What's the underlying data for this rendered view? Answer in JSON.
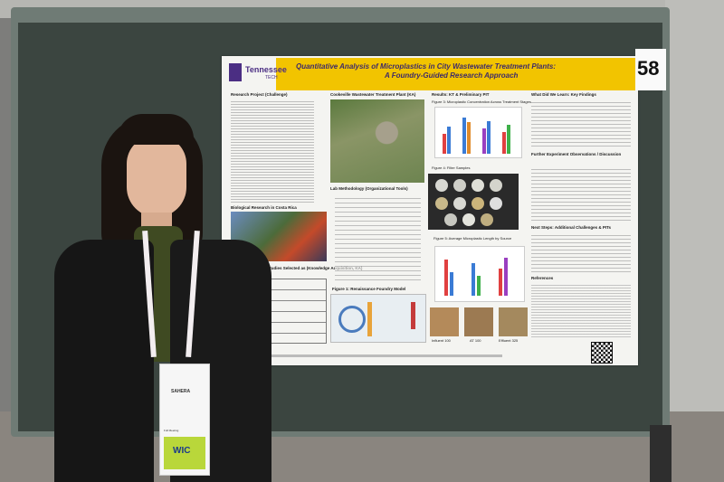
{
  "scene": {
    "colors": {
      "ceiling": "#b8b8b4",
      "board_frame": "#6f7a74",
      "board": "#3c4640",
      "poster": "#f4f4f1",
      "title_band": "#f2c400",
      "floor": "#8f8a84"
    }
  },
  "poster": {
    "logo": "Tennessee",
    "logo_sub": "TECH",
    "number": "58",
    "title": "Quantitative Analysis of Microplastics in City Wastewater Treatment Plants:",
    "subtitle": "A Foundry-Guided Research Approach",
    "sections": {
      "research_project": "Research Project (Challenge)",
      "cookeville": "Cookeville Wastewater Treatment Plant (KA)",
      "results": "Results: KT & Preliminary PIT",
      "learned": "What Did We Learn: Key Findings",
      "lab": "Lab Methodology (Organizational Tools)",
      "bio": "Biological Research in Costa Rica",
      "further": "Further Experiment Observations / Discussion",
      "next": "Next Steps: Additional Challenges & PITs",
      "previous": "Previous Studies Selected as (Knowledge Acquisition, KA)",
      "figure1": "Figure 1: Renaissance Foundry Model",
      "references": "References"
    },
    "figure_labels": {
      "fig3": "Figure 3: Microplastic Concentration Across Treatment Stages",
      "fig4": "Figure 4: Filter Samples",
      "fig5": "Figure 5: Average Microplastic Length by Source"
    },
    "stage_labels": [
      "Influent 100",
      "AT 100",
      "Effluent 325"
    ]
  },
  "badge": {
    "name": "SAHERA",
    "label": "WIC",
    "tag": "Full Meeting"
  }
}
